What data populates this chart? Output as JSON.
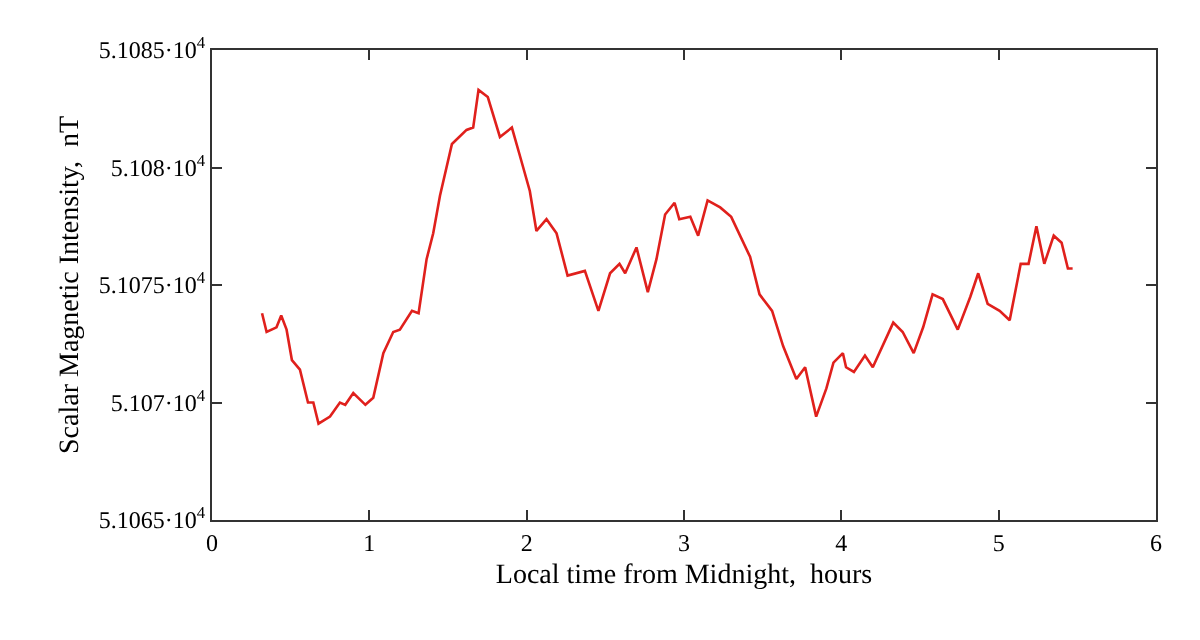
{
  "chart_data": {
    "type": "line",
    "xlabel": "Local time from Midnight,  hours",
    "ylabel": "Scalar Magnetic Intensity,  nT",
    "xlim": [
      0,
      6
    ],
    "xticks": [
      0,
      1,
      2,
      3,
      4,
      5,
      6
    ],
    "ylim": [
      51065,
      51085
    ],
    "yticks": [
      {
        "value": 51065,
        "label": "5.1065·10$^{4}$"
      },
      {
        "value": 51070,
        "label": "5.107·10$^{4}$"
      },
      {
        "value": 51075,
        "label": "5.1075·10$^{4}$"
      },
      {
        "value": 51080,
        "label": "5.108·10$^{4}$"
      },
      {
        "value": 51085,
        "label": "5.1085·10$^{4}$"
      }
    ],
    "marker": "none",
    "line_style": "solid",
    "x": [
      0.318,
      0.347,
      0.41,
      0.44,
      0.474,
      0.508,
      0.559,
      0.61,
      0.644,
      0.677,
      0.75,
      0.813,
      0.847,
      0.898,
      0.975,
      1.025,
      1.089,
      1.152,
      1.194,
      1.271,
      1.313,
      1.364,
      1.406,
      1.449,
      1.525,
      1.618,
      1.66,
      1.694,
      1.753,
      1.83,
      1.906,
      1.957,
      2.02,
      2.062,
      2.126,
      2.19,
      2.26,
      2.37,
      2.456,
      2.53,
      2.59,
      2.626,
      2.698,
      2.77,
      2.825,
      2.88,
      2.94,
      2.97,
      3.04,
      3.09,
      3.15,
      3.23,
      3.3,
      3.42,
      3.48,
      3.56,
      3.63,
      3.714,
      3.77,
      3.84,
      3.905,
      3.95,
      4.01,
      4.03,
      4.08,
      4.15,
      4.2,
      4.33,
      4.39,
      4.46,
      4.52,
      4.58,
      4.645,
      4.74,
      4.82,
      4.87,
      4.93,
      5.006,
      5.07,
      5.14,
      5.19,
      5.24,
      5.29,
      5.35,
      5.4,
      5.44,
      5.47
    ],
    "series": [
      {
        "color": "#e0201c",
        "values": [
          51073.8,
          51073.0,
          51073.2,
          51073.7,
          51073.1,
          51071.8,
          51071.4,
          51070.0,
          51070.0,
          51069.1,
          51069.4,
          51070.0,
          51069.9,
          51070.4,
          51069.9,
          51070.2,
          51072.1,
          51073.0,
          51073.1,
          51073.9,
          51073.8,
          51076.1,
          51077.2,
          51078.8,
          51081.0,
          51081.6,
          51081.7,
          51083.3,
          51083.0,
          51081.3,
          51081.7,
          51080.5,
          51079.0,
          51077.3,
          51077.8,
          51077.2,
          51075.4,
          51075.6,
          51073.9,
          51075.5,
          51075.9,
          51075.5,
          51076.6,
          51074.7,
          51076.1,
          51078.0,
          51078.5,
          51077.8,
          51077.9,
          51077.1,
          51078.6,
          51078.3,
          51077.9,
          51076.2,
          51074.6,
          51073.9,
          51072.4,
          51071.0,
          51071.5,
          51069.4,
          51070.6,
          51071.7,
          51072.1,
          51071.5,
          51071.3,
          51072.0,
          51071.5,
          51073.4,
          51073.0,
          51072.1,
          51073.2,
          51074.6,
          51074.4,
          51073.1,
          51074.5,
          51075.5,
          51074.2,
          51073.9,
          51073.5,
          51075.9,
          51075.9,
          51077.5,
          51075.9,
          51077.1,
          51076.8,
          51075.7,
          51075.7
        ]
      }
    ]
  }
}
